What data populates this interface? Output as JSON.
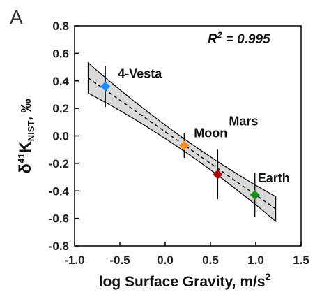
{
  "chart_data": {
    "type": "scatter",
    "panel_label": "A",
    "annotation": {
      "r2_prefix": "R",
      "r2_sup": "2",
      "r2_value": " = 0.995"
    },
    "xlabel": {
      "text": "log Surface Gravity, m/s",
      "sup": "2"
    },
    "ylabel": {
      "delta": "δ",
      "iso_sup": "41",
      "element": "K",
      "sub": "NIST",
      "unit": ", ‰"
    },
    "xlim": [
      -1.0,
      1.5
    ],
    "ylim": [
      -0.8,
      0.8
    ],
    "xticks": [
      "-1.0",
      "-0.5",
      "0.0",
      "0.5",
      "1.0",
      "1.5"
    ],
    "yticks": [
      "0.8",
      "0.6",
      "0.4",
      "0.2",
      "0.0",
      "-0.2",
      "-0.4",
      "-0.6",
      "-0.8"
    ],
    "points": [
      {
        "name": "4-Vesta",
        "x": -0.66,
        "y": 0.36,
        "err": 0.15,
        "color": "#1e8fff"
      },
      {
        "name": "Moon",
        "x": 0.21,
        "y": -0.07,
        "err": 0.09,
        "color": "#ff8c1a"
      },
      {
        "name": "Mars",
        "x": 0.58,
        "y": -0.28,
        "err": 0.18,
        "color": "#b00000"
      },
      {
        "name": "Earth",
        "x": 0.99,
        "y": -0.43,
        "err": 0.16,
        "color": "#1a8c1a"
      }
    ],
    "fit": {
      "x_range": [
        -0.85,
        1.22
      ],
      "slope": -0.46,
      "intercept": 0.03,
      "band_at_ends": 0.11,
      "band_at_mean": 0.045,
      "mean_x": 0.28
    },
    "grid": false,
    "colors": {
      "band": "#d9d9d9",
      "axis": "#000000"
    }
  }
}
